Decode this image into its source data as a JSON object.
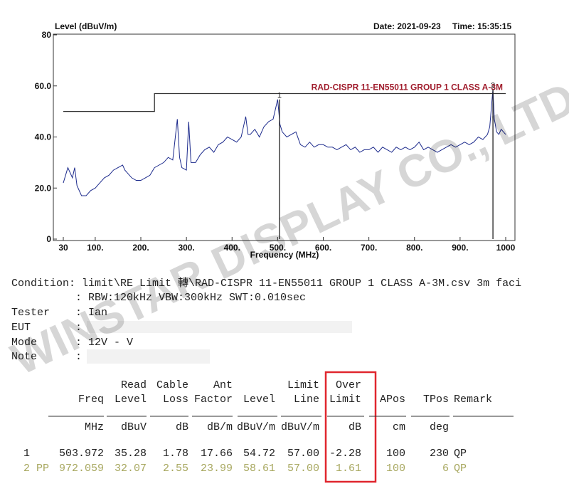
{
  "chart_data": {
    "type": "line",
    "y_label": "Level (dBuV/m)",
    "x_label": "Frequency (MHz)",
    "date": "Date: 2021-09-23",
    "time": "Time: 15:35:15",
    "xlim": [
      30,
      1000
    ],
    "ylim": [
      0,
      80
    ],
    "xticks": [
      30,
      {
        "value": 100,
        "label": "100."
      },
      {
        "value": 200,
        "label": "200."
      },
      {
        "value": 300,
        "label": "300."
      },
      {
        "value": 400,
        "label": "400."
      },
      {
        "value": 500,
        "label": "500."
      },
      {
        "value": 600,
        "label": "600."
      },
      {
        "value": 700,
        "label": "700."
      },
      {
        "value": 800,
        "label": "800."
      },
      {
        "value": 900,
        "label": "900."
      },
      1000
    ],
    "yticks": [
      0,
      {
        "value": 20,
        "label": "20.0"
      },
      {
        "value": 40,
        "label": "40.0"
      },
      {
        "value": 60,
        "label": "60.0"
      },
      80
    ],
    "series": [
      {
        "color": "#1c2a8c",
        "x": [
          30,
          35,
          40,
          45,
          50,
          55,
          60,
          70,
          80,
          90,
          100,
          110,
          120,
          130,
          140,
          150,
          160,
          165,
          170,
          180,
          190,
          200,
          210,
          220,
          230,
          240,
          250,
          260,
          270,
          280,
          285,
          290,
          300,
          305,
          310,
          320,
          330,
          340,
          350,
          360,
          370,
          380,
          390,
          400,
          410,
          420,
          430,
          435,
          440,
          450,
          460,
          470,
          480,
          490,
          500,
          505,
          510,
          520,
          530,
          540,
          550,
          560,
          570,
          580,
          590,
          600,
          610,
          620,
          630,
          640,
          650,
          660,
          670,
          680,
          690,
          700,
          710,
          720,
          730,
          740,
          750,
          760,
          770,
          780,
          790,
          800,
          810,
          820,
          830,
          840,
          850,
          860,
          870,
          880,
          890,
          900,
          910,
          920,
          930,
          940,
          950,
          960,
          965,
          972,
          975,
          980,
          985,
          990,
          995,
          1000
        ],
        "values": [
          22,
          25,
          28,
          26,
          24,
          28,
          21,
          17,
          17,
          19,
          20,
          22,
          24,
          25,
          27,
          28,
          29,
          27,
          26,
          24,
          23,
          23,
          24,
          25,
          28,
          29,
          30,
          32,
          31,
          47,
          32,
          28,
          27,
          46,
          30,
          30,
          33,
          35,
          36,
          34,
          37,
          38,
          40,
          39,
          38,
          40,
          48,
          41,
          41,
          43,
          40,
          44,
          46,
          47,
          54.7,
          45,
          42,
          40,
          41,
          42,
          37,
          36,
          38,
          36,
          37,
          37,
          36,
          36,
          35,
          36,
          37,
          35,
          36,
          34,
          35,
          35,
          36,
          34,
          36,
          35,
          34,
          36,
          35,
          36,
          35,
          36,
          38,
          35,
          36,
          35,
          34,
          35,
          36,
          37,
          36,
          37,
          38,
          37,
          38,
          40,
          39,
          41,
          44,
          58.6,
          47,
          42,
          41,
          43,
          42,
          41
        ]
      },
      {
        "name": "RAD-CISPR 11-EN55011 GROUP 1 CLASS A-3M",
        "color": "#333333",
        "label_color": "#a01c2c",
        "x": [
          30,
          230,
          230,
          1000
        ],
        "values": [
          50,
          50,
          57,
          57
        ]
      }
    ],
    "markers": [
      {
        "label": "1",
        "x": 503.972,
        "y": 54.72
      },
      {
        "label": "2",
        "x": 972.059,
        "y": 58.61
      }
    ]
  },
  "watermark": "WINSTAR DISPLAY CO., LTD.",
  "info": {
    "condition_label": "Condition:",
    "condition": [
      " limit\\RE Limit 轉\\RAD-CISPR 11-EN55011 GROUP 1 CLASS A-3M.csv 3m faci",
      ": RBW:120kHz VBW:300kHz SWT:0.010sec"
    ],
    "fields": [
      {
        "label": "Tester",
        "value": ": Ian"
      },
      {
        "label": "EUT",
        "value": ":"
      },
      {
        "label": "Mode",
        "value": ": 12V - V"
      },
      {
        "label": "Note",
        "value": ":"
      }
    ]
  },
  "table": {
    "headers": [
      [
        "Freq"
      ],
      [
        "Read",
        "Level"
      ],
      [
        "Cable",
        "Loss"
      ],
      [
        "Ant",
        "Factor"
      ],
      [
        "Level"
      ],
      [
        "Limit",
        "Line"
      ],
      [
        "Over",
        "Limit"
      ],
      [
        "APos"
      ],
      [
        "TPos"
      ],
      [
        "Remark"
      ]
    ],
    "units": [
      "MHz",
      "dBuV",
      "dB",
      "dB/m",
      "dBuV/m",
      "dBuV/m",
      "dB",
      "cm",
      "deg"
    ],
    "rows": [
      [
        "1",
        "503.972",
        "35.28",
        "1.78",
        "17.66",
        "54.72",
        "57.00",
        "-2.28",
        "100",
        "230",
        "QP"
      ],
      [
        "2 PP",
        "972.059",
        "32.07",
        "2.55",
        "23.99",
        "58.61",
        "57.00",
        "1.61",
        "100",
        "6",
        "QP"
      ]
    ]
  }
}
